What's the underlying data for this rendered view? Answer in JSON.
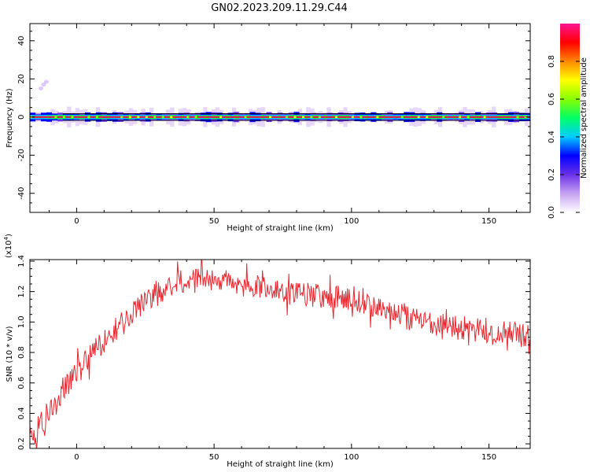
{
  "title": "GN02.2023.209.11.29.C44",
  "chart_data": [
    {
      "type": "heatmap",
      "xlabel": "Height of straight line (km)",
      "ylabel": "Frequency (Hz)",
      "xlim": [
        -17,
        165
      ],
      "ylim": [
        -50,
        49
      ],
      "xticks": [
        0,
        50,
        100,
        150
      ],
      "yticks": [
        -40,
        -20,
        0,
        20,
        40
      ],
      "colorbar": {
        "label": "Normalized spectral amplitude",
        "range": [
          0.0,
          1.0
        ],
        "ticks": [
          "0.0",
          "0.2",
          "0.4",
          "0.6",
          "0.8"
        ],
        "tick_values": [
          0.0,
          0.2,
          0.4,
          0.6,
          0.8
        ],
        "colormap": [
          "#ffffff",
          "#c7a3f2",
          "#6a32e8",
          "#0000ff",
          "#00ccff",
          "#00ff66",
          "#88ff00",
          "#ffff00",
          "#ff8800",
          "#ff0000",
          "#ff1493"
        ]
      },
      "band": {
        "center_frequency_hz": 0,
        "line_color": "#000000",
        "peak_color": "#e8193c",
        "note": "strong narrow signal along 0 Hz across full height range"
      }
    },
    {
      "type": "line",
      "xlabel": "Height of straight line (km)",
      "ylabel": "SNR (10 * v/v)",
      "multiplier_label": "(x10",
      "multiplier_exp": "4",
      "xlim": [
        -17,
        165
      ],
      "ylim": [
        0.17,
        1.41
      ],
      "xticks": [
        0,
        50,
        100,
        150
      ],
      "yticks": [
        0.2,
        0.4,
        0.6,
        0.8,
        1.0,
        1.2,
        1.4
      ],
      "ytick_labels": [
        "0.2",
        "0.4",
        "0.6",
        "0.8",
        "1.0",
        "1.2",
        "1.4"
      ],
      "series": [
        {
          "color": "#e8262e",
          "x": [
            -17,
            -10,
            -5,
            0,
            5,
            10,
            15,
            20,
            25,
            30,
            35,
            40,
            45,
            50,
            55,
            60,
            65,
            70,
            75,
            80,
            85,
            90,
            95,
            100,
            105,
            110,
            115,
            120,
            125,
            130,
            135,
            140,
            145,
            150,
            155,
            160,
            165
          ],
          "y": [
            0.22,
            0.42,
            0.55,
            0.66,
            0.78,
            0.88,
            0.97,
            1.05,
            1.13,
            1.19,
            1.25,
            1.28,
            1.29,
            1.27,
            1.26,
            1.24,
            1.23,
            1.21,
            1.19,
            1.18,
            1.18,
            1.17,
            1.16,
            1.14,
            1.12,
            1.09,
            1.06,
            1.03,
            1.01,
            0.99,
            0.97,
            0.96,
            0.95,
            0.94,
            0.93,
            0.92,
            0.9
          ],
          "noise_amplitude": 0.08
        }
      ]
    }
  ]
}
